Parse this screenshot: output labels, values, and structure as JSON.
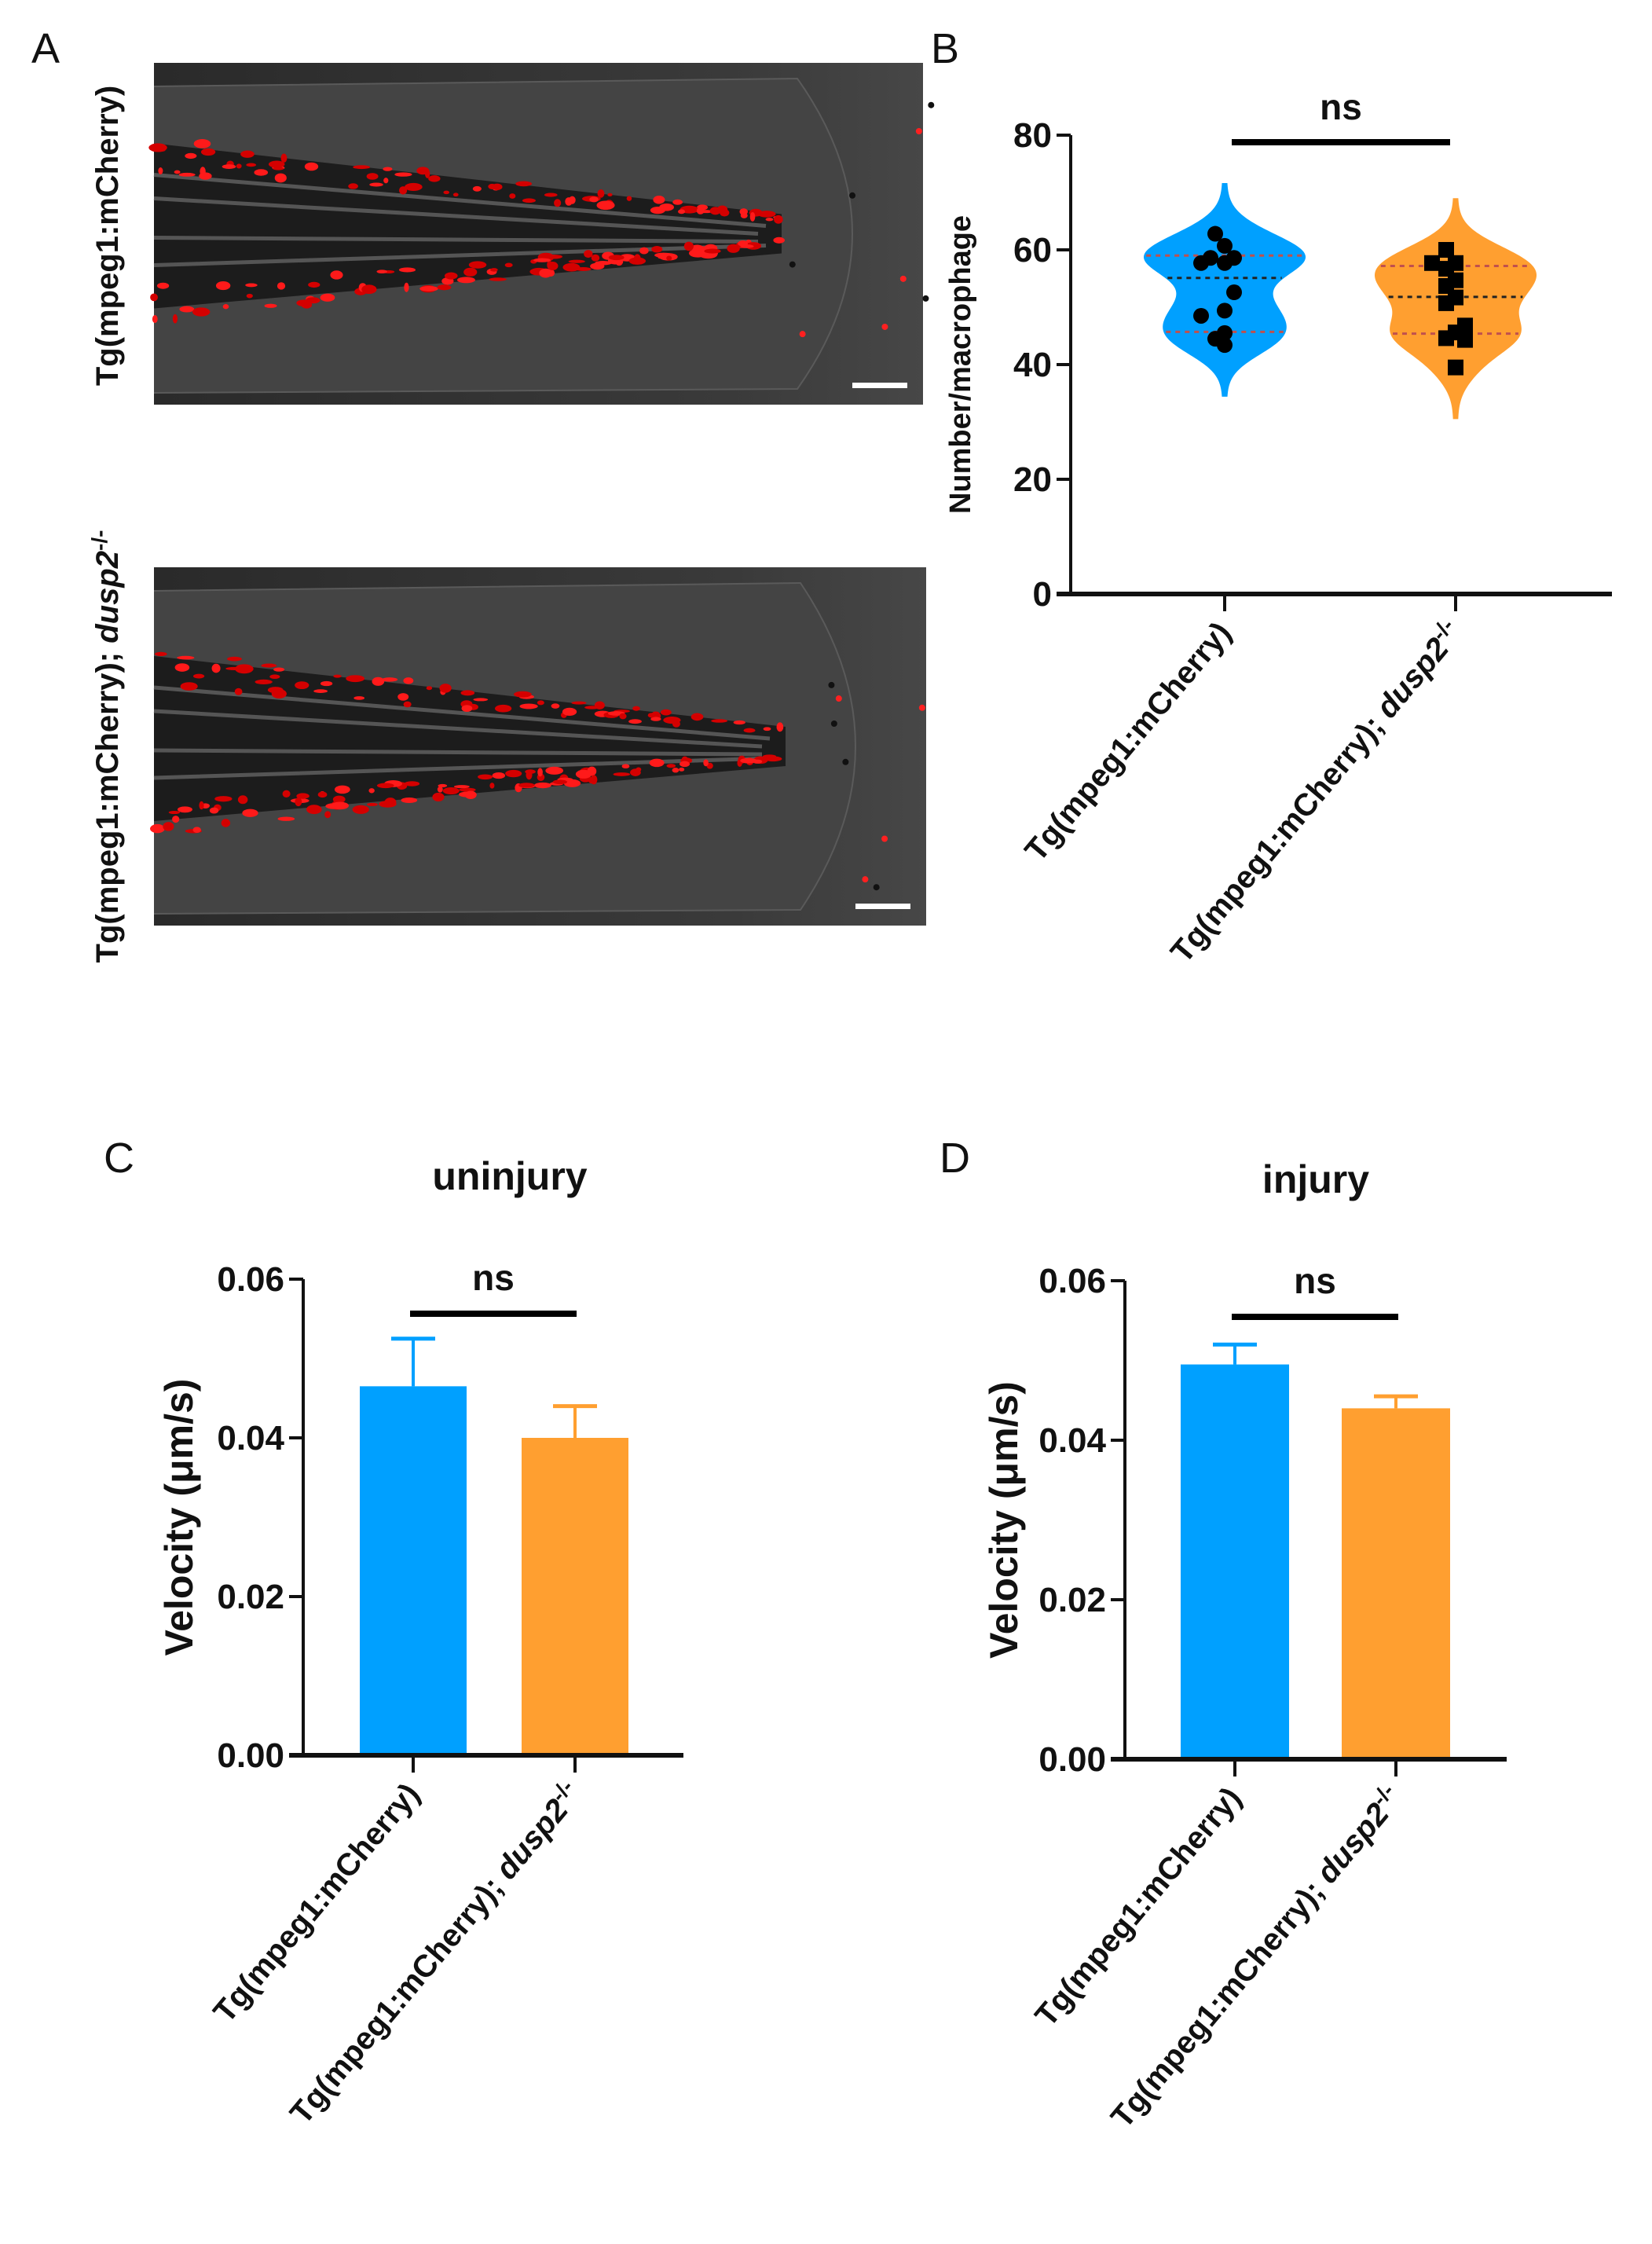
{
  "panel_labels": {
    "a": "A",
    "b": "B",
    "c": "C",
    "d": "D"
  },
  "panel_a": {
    "row1_label": "Tg(mpeg1:mCherry)",
    "row2_label_prefix": "Tg(mpeg1:mCherry); ",
    "row2_label_gene": "dusp2",
    "row2_label_sup": "-/-"
  },
  "colors": {
    "wt": "#00a0ff",
    "mut": "#ff9f30",
    "axis": "#111111"
  },
  "categories": [
    {
      "prefix": "Tg(mpeg1:mCherry)",
      "gene": "",
      "sup": ""
    },
    {
      "prefix": "Tg(mpeg1:mCherry); ",
      "gene": "dusp2",
      "sup": "-/-"
    }
  ],
  "chart_data": [
    {
      "id": "B",
      "type": "violin",
      "title": "",
      "ylabel": "Number/macrophage",
      "ylim": [
        0,
        80
      ],
      "yticks": [
        "0",
        "20",
        "40",
        "60",
        "80"
      ],
      "significance": "ns",
      "series": [
        {
          "category": 0,
          "marker": "circle",
          "points": [
            62.8,
            60.7,
            58.6,
            58.6,
            57.7,
            57.7,
            52.6,
            49.4,
            48.5,
            45.5,
            44.5,
            43.4
          ],
          "quartiles": [
            45.7,
            55.1,
            59.0
          ]
        },
        {
          "category": 1,
          "marker": "square",
          "points": [
            60.0,
            57.7,
            57.7,
            56.7,
            54.7,
            53.7,
            51.7,
            50.7,
            46.8,
            45.6,
            44.6,
            44.3,
            39.5
          ],
          "quartiles": [
            45.4,
            51.8,
            57.2
          ]
        }
      ]
    },
    {
      "id": "C",
      "type": "bar",
      "title": "uninjury",
      "ylabel": "Velocity (μm/s)",
      "ylim": [
        0,
        0.06
      ],
      "yticks": [
        "0.00",
        "0.02",
        "0.04",
        "0.06"
      ],
      "significance": "ns",
      "values": [
        0.0465,
        0.04
      ],
      "errors": [
        0.006,
        0.004
      ]
    },
    {
      "id": "D",
      "type": "bar",
      "title": "injury",
      "ylabel": "Velocity (μm/s)",
      "ylim": [
        0,
        0.06
      ],
      "yticks": [
        "0.00",
        "0.02",
        "0.04",
        "0.06"
      ],
      "significance": "ns",
      "values": [
        0.0495,
        0.044
      ],
      "errors": [
        0.0025,
        0.0015
      ]
    }
  ]
}
